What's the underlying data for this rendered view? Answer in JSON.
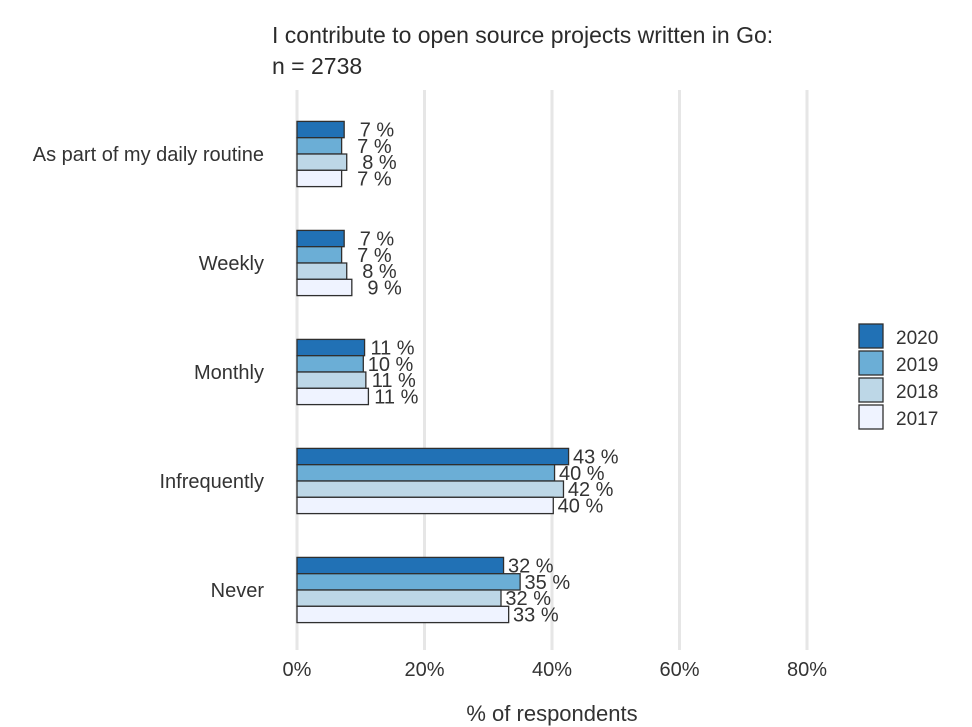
{
  "chart_data": {
    "type": "bar",
    "orientation": "horizontal",
    "title": "I contribute to open source projects written in Go:",
    "subtitle": "n = 2738",
    "xlabel": "% of respondents",
    "ylabel": "",
    "xlim": [
      0,
      90
    ],
    "x_ticks": [
      0,
      20,
      40,
      60,
      80
    ],
    "x_tick_labels": [
      "0%",
      "20%",
      "40%",
      "60%",
      "80%"
    ],
    "grid": "vertical",
    "legend_position": "right",
    "categories": [
      "As part of my daily routine",
      "Weekly",
      "Monthly",
      "Infrequently",
      "Never"
    ],
    "series": [
      {
        "name": "2020",
        "color": "#2171b5",
        "values": [
          7.4,
          7.4,
          10.6,
          42.6,
          32.4
        ],
        "labels": [
          "7 %",
          "7 %",
          "11 %",
          "43 %",
          "32 %"
        ]
      },
      {
        "name": "2019",
        "color": "#6baed6",
        "values": [
          7.0,
          7.0,
          10.4,
          40.4,
          35.0
        ],
        "labels": [
          "7 %",
          "7 %",
          "10 %",
          "40 %",
          "35 %"
        ]
      },
      {
        "name": "2018",
        "color": "#bdd7e7",
        "values": [
          7.8,
          7.8,
          10.8,
          41.8,
          32.0
        ],
        "labels": [
          "8 %",
          "8 %",
          "11 %",
          "42 %",
          "32 %"
        ]
      },
      {
        "name": "2017",
        "color": "#eff3ff",
        "values": [
          7.0,
          8.6,
          11.2,
          40.2,
          33.2
        ],
        "labels": [
          "7 %",
          "9 %",
          "11 %",
          "40 %",
          "33 %"
        ]
      }
    ]
  }
}
